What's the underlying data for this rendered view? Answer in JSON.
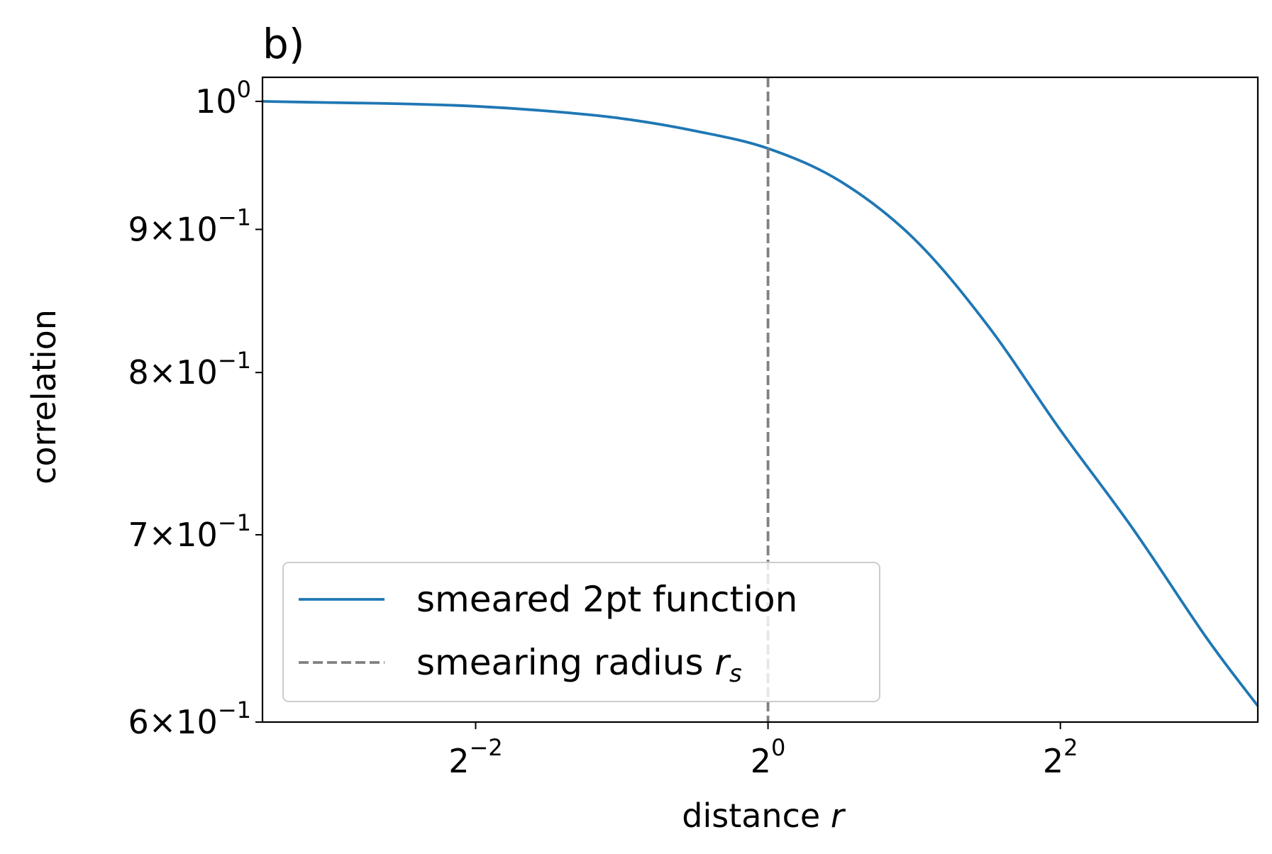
{
  "chart_data": {
    "type": "line",
    "panel_label": "b)",
    "xlabel": "distance r",
    "ylabel": "correlation",
    "x_scale": "log2",
    "y_scale": "log",
    "xlim": [
      0.091,
      10.2
    ],
    "ylim": [
      0.6,
      1.02
    ],
    "x_ticks": [
      {
        "value": 0.25,
        "base": "2",
        "exp": "−2"
      },
      {
        "value": 1,
        "base": "2",
        "exp": "0"
      },
      {
        "value": 4,
        "base": "2",
        "exp": "2"
      }
    ],
    "y_ticks": [
      {
        "value": 1.0,
        "mant": "",
        "base": "10",
        "exp": "0"
      },
      {
        "value": 0.9,
        "mant": "9×",
        "base": "10",
        "exp": "−1"
      },
      {
        "value": 0.8,
        "mant": "8×",
        "base": "10",
        "exp": "−1"
      },
      {
        "value": 0.7,
        "mant": "7×",
        "base": "10",
        "exp": "−1"
      },
      {
        "value": 0.6,
        "mant": "6×",
        "base": "10",
        "exp": "−1"
      }
    ],
    "series": [
      {
        "name": "smeared 2pt function",
        "style": "solid",
        "color": "#1f77b4",
        "x": [
          0.091,
          0.125,
          0.177,
          0.25,
          0.354,
          0.5,
          0.707,
          1.0,
          1.414,
          2.0,
          2.828,
          4.0,
          5.657,
          8.0,
          10.2
        ],
        "y": [
          1.0,
          0.999,
          0.998,
          0.996,
          0.992,
          0.986,
          0.976,
          0.962,
          0.936,
          0.893,
          0.832,
          0.763,
          0.703,
          0.643,
          0.608
        ]
      }
    ],
    "vlines": [
      {
        "name": "smearing radius r_s",
        "x": 1.0,
        "style": "dashed",
        "color": "#808080"
      }
    ],
    "legend": {
      "position": "lower-left",
      "entries": [
        {
          "label": "smeared 2pt function",
          "color": "#1f77b4",
          "style": "solid"
        },
        {
          "label_text": "smearing radius ",
          "label_math": "r",
          "label_sub": "s",
          "color": "#808080",
          "style": "dashed"
        }
      ]
    },
    "grid": false
  }
}
